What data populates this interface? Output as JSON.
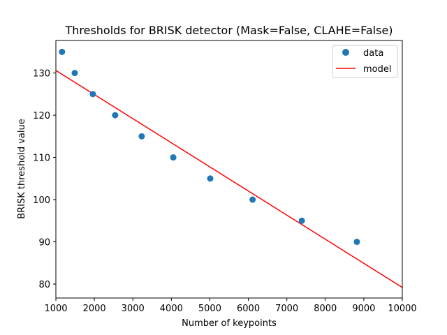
{
  "chart_data": {
    "type": "scatter",
    "title": "Thresholds for BRISK detector (Mask=False, CLAHE=False)",
    "xlabel": "Number of keypoints",
    "ylabel": "BRISK threshold value",
    "xlim": [
      1000,
      10000
    ],
    "ylim": [
      76.7,
      137.7
    ],
    "xticks": [
      1000,
      2000,
      3000,
      4000,
      5000,
      6000,
      7000,
      8000,
      9000,
      10000
    ],
    "yticks": [
      80,
      90,
      100,
      110,
      120,
      130
    ],
    "xtick_labels": [
      "1000",
      "2000",
      "3000",
      "4000",
      "5000",
      "6000",
      "7000",
      "8000",
      "9000",
      "10000"
    ],
    "ytick_labels": [
      "80",
      "90",
      "100",
      "110",
      "120",
      "130"
    ],
    "grid": false,
    "legend_position": "top-right",
    "series": [
      {
        "name": "data",
        "kind": "scatter",
        "color": "#1f77b4",
        "x": [
          1160,
          1490,
          1960,
          2540,
          3230,
          4050,
          5010,
          6110,
          7390,
          8820
        ],
        "y": [
          135,
          130,
          125,
          120,
          115,
          110,
          105,
          100,
          95,
          90
        ]
      },
      {
        "name": "model",
        "kind": "line",
        "color": "#ff0000",
        "x": [
          1000,
          10000
        ],
        "y": [
          130.6,
          79.2
        ]
      }
    ]
  }
}
